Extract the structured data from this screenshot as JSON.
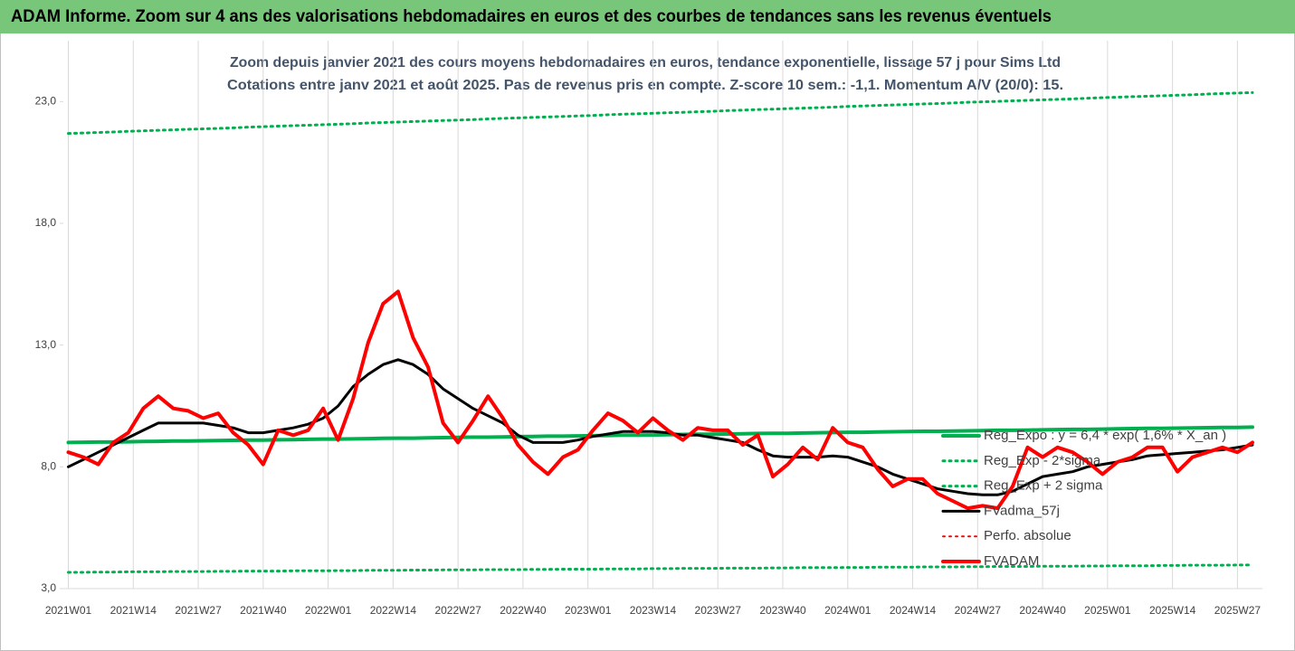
{
  "chart_data": {
    "type": "line",
    "header": "ADAM Informe. Zoom sur 4 ans des valorisations hebdomadaires en euros et des courbes de tendances sans les revenus éventuels",
    "title": "Zoom depuis janvier 2021 des cours moyens hebdomadaires en euros, tendance exponentielle, lissage 57 j pour Sims Ltd",
    "subtitle": "Cotations entre janv 2021 et août 2025.  Pas de revenus pris en compte. Z-score 10 sem.: -1,1. Momentum A/V (20/0): 15.",
    "x": [
      0,
      3,
      6,
      9,
      12,
      15,
      18,
      21,
      24,
      27,
      30,
      33,
      36,
      39,
      42,
      45,
      48,
      51,
      54,
      57,
      60,
      63,
      66,
      69,
      72,
      75,
      78,
      81,
      84,
      87,
      90,
      93,
      96,
      99,
      102,
      105,
      108,
      111,
      114,
      117,
      120,
      123,
      126,
      129,
      132,
      135,
      138,
      141,
      144,
      147,
      150,
      153,
      156,
      159,
      162,
      165,
      168,
      171,
      174,
      177,
      180,
      183,
      186,
      189,
      192,
      195,
      198,
      201,
      204,
      207,
      210,
      213,
      216,
      219,
      222,
      225,
      228,
      231,
      234,
      237
    ],
    "xlim": [
      -1,
      239
    ],
    "xticks": [
      {
        "value": 0,
        "label": "2021W01"
      },
      {
        "value": 13,
        "label": "2021W14"
      },
      {
        "value": 26,
        "label": "2021W27"
      },
      {
        "value": 39,
        "label": "2021W40"
      },
      {
        "value": 52,
        "label": "2022W01"
      },
      {
        "value": 65,
        "label": "2022W14"
      },
      {
        "value": 78,
        "label": "2022W27"
      },
      {
        "value": 91,
        "label": "2022W40"
      },
      {
        "value": 104,
        "label": "2023W01"
      },
      {
        "value": 117,
        "label": "2023W14"
      },
      {
        "value": 130,
        "label": "2023W27"
      },
      {
        "value": 143,
        "label": "2023W40"
      },
      {
        "value": 156,
        "label": "2024W01"
      },
      {
        "value": 169,
        "label": "2024W14"
      },
      {
        "value": 182,
        "label": "2024W27"
      },
      {
        "value": 195,
        "label": "2024W40"
      },
      {
        "value": 208,
        "label": "2025W01"
      },
      {
        "value": 221,
        "label": "2025W14"
      },
      {
        "value": 234,
        "label": "2025W27"
      }
    ],
    "ylim": [
      3,
      25.5
    ],
    "yticks": [
      {
        "value": 3,
        "label": "3,0"
      },
      {
        "value": 8,
        "label": "8,0"
      },
      {
        "value": 13,
        "label": "13,0"
      },
      {
        "value": 18,
        "label": "18,0"
      },
      {
        "value": 23,
        "label": "23,0"
      }
    ],
    "grid": "x",
    "series": [
      {
        "name": "Reg_Expo : y = 6,4 * exp( 1,6% * X_an )",
        "color": "#00b050",
        "line_style": "solid",
        "width": 4,
        "values": [
          9.0,
          9.01,
          9.02,
          9.02,
          9.03,
          9.04,
          9.05,
          9.06,
          9.06,
          9.07,
          9.08,
          9.09,
          9.1,
          9.1,
          9.11,
          9.12,
          9.13,
          9.14,
          9.14,
          9.15,
          9.16,
          9.17,
          9.18,
          9.18,
          9.19,
          9.2,
          9.21,
          9.22,
          9.22,
          9.23,
          9.24,
          9.25,
          9.26,
          9.26,
          9.27,
          9.28,
          9.29,
          9.3,
          9.3,
          9.31,
          9.32,
          9.33,
          9.34,
          9.34,
          9.35,
          9.36,
          9.37,
          9.38,
          9.38,
          9.39,
          9.4,
          9.41,
          9.42,
          9.42,
          9.43,
          9.44,
          9.45,
          9.46,
          9.46,
          9.47,
          9.48,
          9.49,
          9.5,
          9.5,
          9.51,
          9.52,
          9.53,
          9.54,
          9.54,
          9.55,
          9.56,
          9.57,
          9.58,
          9.58,
          9.59,
          9.6,
          9.61,
          9.62,
          9.62,
          9.63
        ]
      },
      {
        "name": "Reg_Exp - 2*sigma",
        "color": "#00b050",
        "line_style": "dotted",
        "width": 3,
        "values": [
          3.67,
          3.67,
          3.68,
          3.68,
          3.69,
          3.69,
          3.69,
          3.7,
          3.7,
          3.7,
          3.71,
          3.71,
          3.72,
          3.72,
          3.72,
          3.73,
          3.73,
          3.73,
          3.74,
          3.74,
          3.75,
          3.75,
          3.75,
          3.76,
          3.76,
          3.77,
          3.77,
          3.77,
          3.78,
          3.78,
          3.78,
          3.79,
          3.79,
          3.8,
          3.8,
          3.8,
          3.81,
          3.81,
          3.81,
          3.82,
          3.82,
          3.83,
          3.83,
          3.83,
          3.84,
          3.84,
          3.84,
          3.85,
          3.85,
          3.86,
          3.86,
          3.86,
          3.87,
          3.87,
          3.88,
          3.88,
          3.88,
          3.89,
          3.89,
          3.89,
          3.9,
          3.9,
          3.91,
          3.91,
          3.91,
          3.92,
          3.92,
          3.92,
          3.93,
          3.93,
          3.94,
          3.94,
          3.94,
          3.95,
          3.95,
          3.96,
          3.96,
          3.96,
          3.97,
          3.97
        ]
      },
      {
        "name": "Reg_Exp + 2 sigma",
        "color": "#00b050",
        "line_style": "dotted",
        "width": 3,
        "values": [
          21.69,
          21.71,
          21.73,
          21.75,
          21.78,
          21.8,
          21.82,
          21.84,
          21.86,
          21.88,
          21.9,
          21.92,
          21.95,
          21.97,
          21.99,
          22.01,
          22.03,
          22.05,
          22.07,
          22.09,
          22.12,
          22.14,
          22.16,
          22.18,
          22.2,
          22.22,
          22.24,
          22.26,
          22.29,
          22.31,
          22.33,
          22.35,
          22.37,
          22.39,
          22.41,
          22.43,
          22.46,
          22.48,
          22.5,
          22.52,
          22.54,
          22.56,
          22.58,
          22.6,
          22.63,
          22.65,
          22.67,
          22.69,
          22.71,
          22.73,
          22.75,
          22.77,
          22.8,
          22.82,
          22.84,
          22.86,
          22.88,
          22.9,
          22.92,
          22.94,
          22.97,
          22.99,
          23.01,
          23.03,
          23.05,
          23.07,
          23.09,
          23.11,
          23.14,
          23.16,
          23.18,
          23.2,
          23.22,
          23.24,
          23.26,
          23.28,
          23.31,
          23.33,
          23.35,
          23.37
        ]
      },
      {
        "name": "FVadma_57j",
        "color": "#000000",
        "line_style": "solid",
        "width": 3,
        "values": [
          8.0,
          8.3,
          8.6,
          8.9,
          9.2,
          9.5,
          9.8,
          9.8,
          9.8,
          9.8,
          9.7,
          9.6,
          9.4,
          9.4,
          9.5,
          9.6,
          9.75,
          10.0,
          10.5,
          11.3,
          11.8,
          12.2,
          12.4,
          12.2,
          11.8,
          11.2,
          10.8,
          10.4,
          10.1,
          9.8,
          9.3,
          9.0,
          9.0,
          9.0,
          9.1,
          9.25,
          9.35,
          9.45,
          9.45,
          9.45,
          9.4,
          9.3,
          9.3,
          9.2,
          9.1,
          9.0,
          8.7,
          8.45,
          8.4,
          8.4,
          8.4,
          8.45,
          8.4,
          8.2,
          8.0,
          7.7,
          7.5,
          7.3,
          7.1,
          7.0,
          6.9,
          6.85,
          6.85,
          7.0,
          7.3,
          7.6,
          7.7,
          7.8,
          8.0,
          8.1,
          8.2,
          8.3,
          8.45,
          8.5,
          8.55,
          8.6,
          8.65,
          8.7,
          8.8,
          8.9
        ]
      },
      {
        "name": "Perfo. absolue",
        "color": "#ff0000",
        "line_style": "dotted",
        "width": 2
      },
      {
        "name": "FVADAM",
        "color": "#ff0000",
        "line_style": "solid",
        "width": 4,
        "values": [
          8.6,
          8.4,
          8.1,
          9.0,
          9.4,
          10.4,
          10.9,
          10.4,
          10.3,
          10.0,
          10.2,
          9.4,
          8.9,
          8.1,
          9.5,
          9.3,
          9.5,
          10.4,
          9.1,
          10.8,
          13.1,
          14.7,
          15.2,
          13.3,
          12.1,
          9.8,
          9.0,
          9.9,
          10.9,
          10.0,
          8.9,
          8.2,
          7.7,
          8.4,
          8.7,
          9.5,
          10.2,
          9.9,
          9.4,
          10.0,
          9.5,
          9.1,
          9.6,
          9.5,
          9.5,
          8.9,
          9.3,
          7.6,
          8.1,
          8.8,
          8.3,
          9.6,
          9.0,
          8.8,
          7.9,
          7.2,
          7.5,
          7.5,
          6.9,
          6.6,
          6.3,
          6.4,
          6.3,
          7.2,
          8.8,
          8.4,
          8.8,
          8.6,
          8.2,
          7.7,
          8.2,
          8.4,
          8.8,
          8.8,
          7.8,
          8.4,
          8.6,
          8.8,
          8.6,
          9.0
        ]
      }
    ]
  }
}
